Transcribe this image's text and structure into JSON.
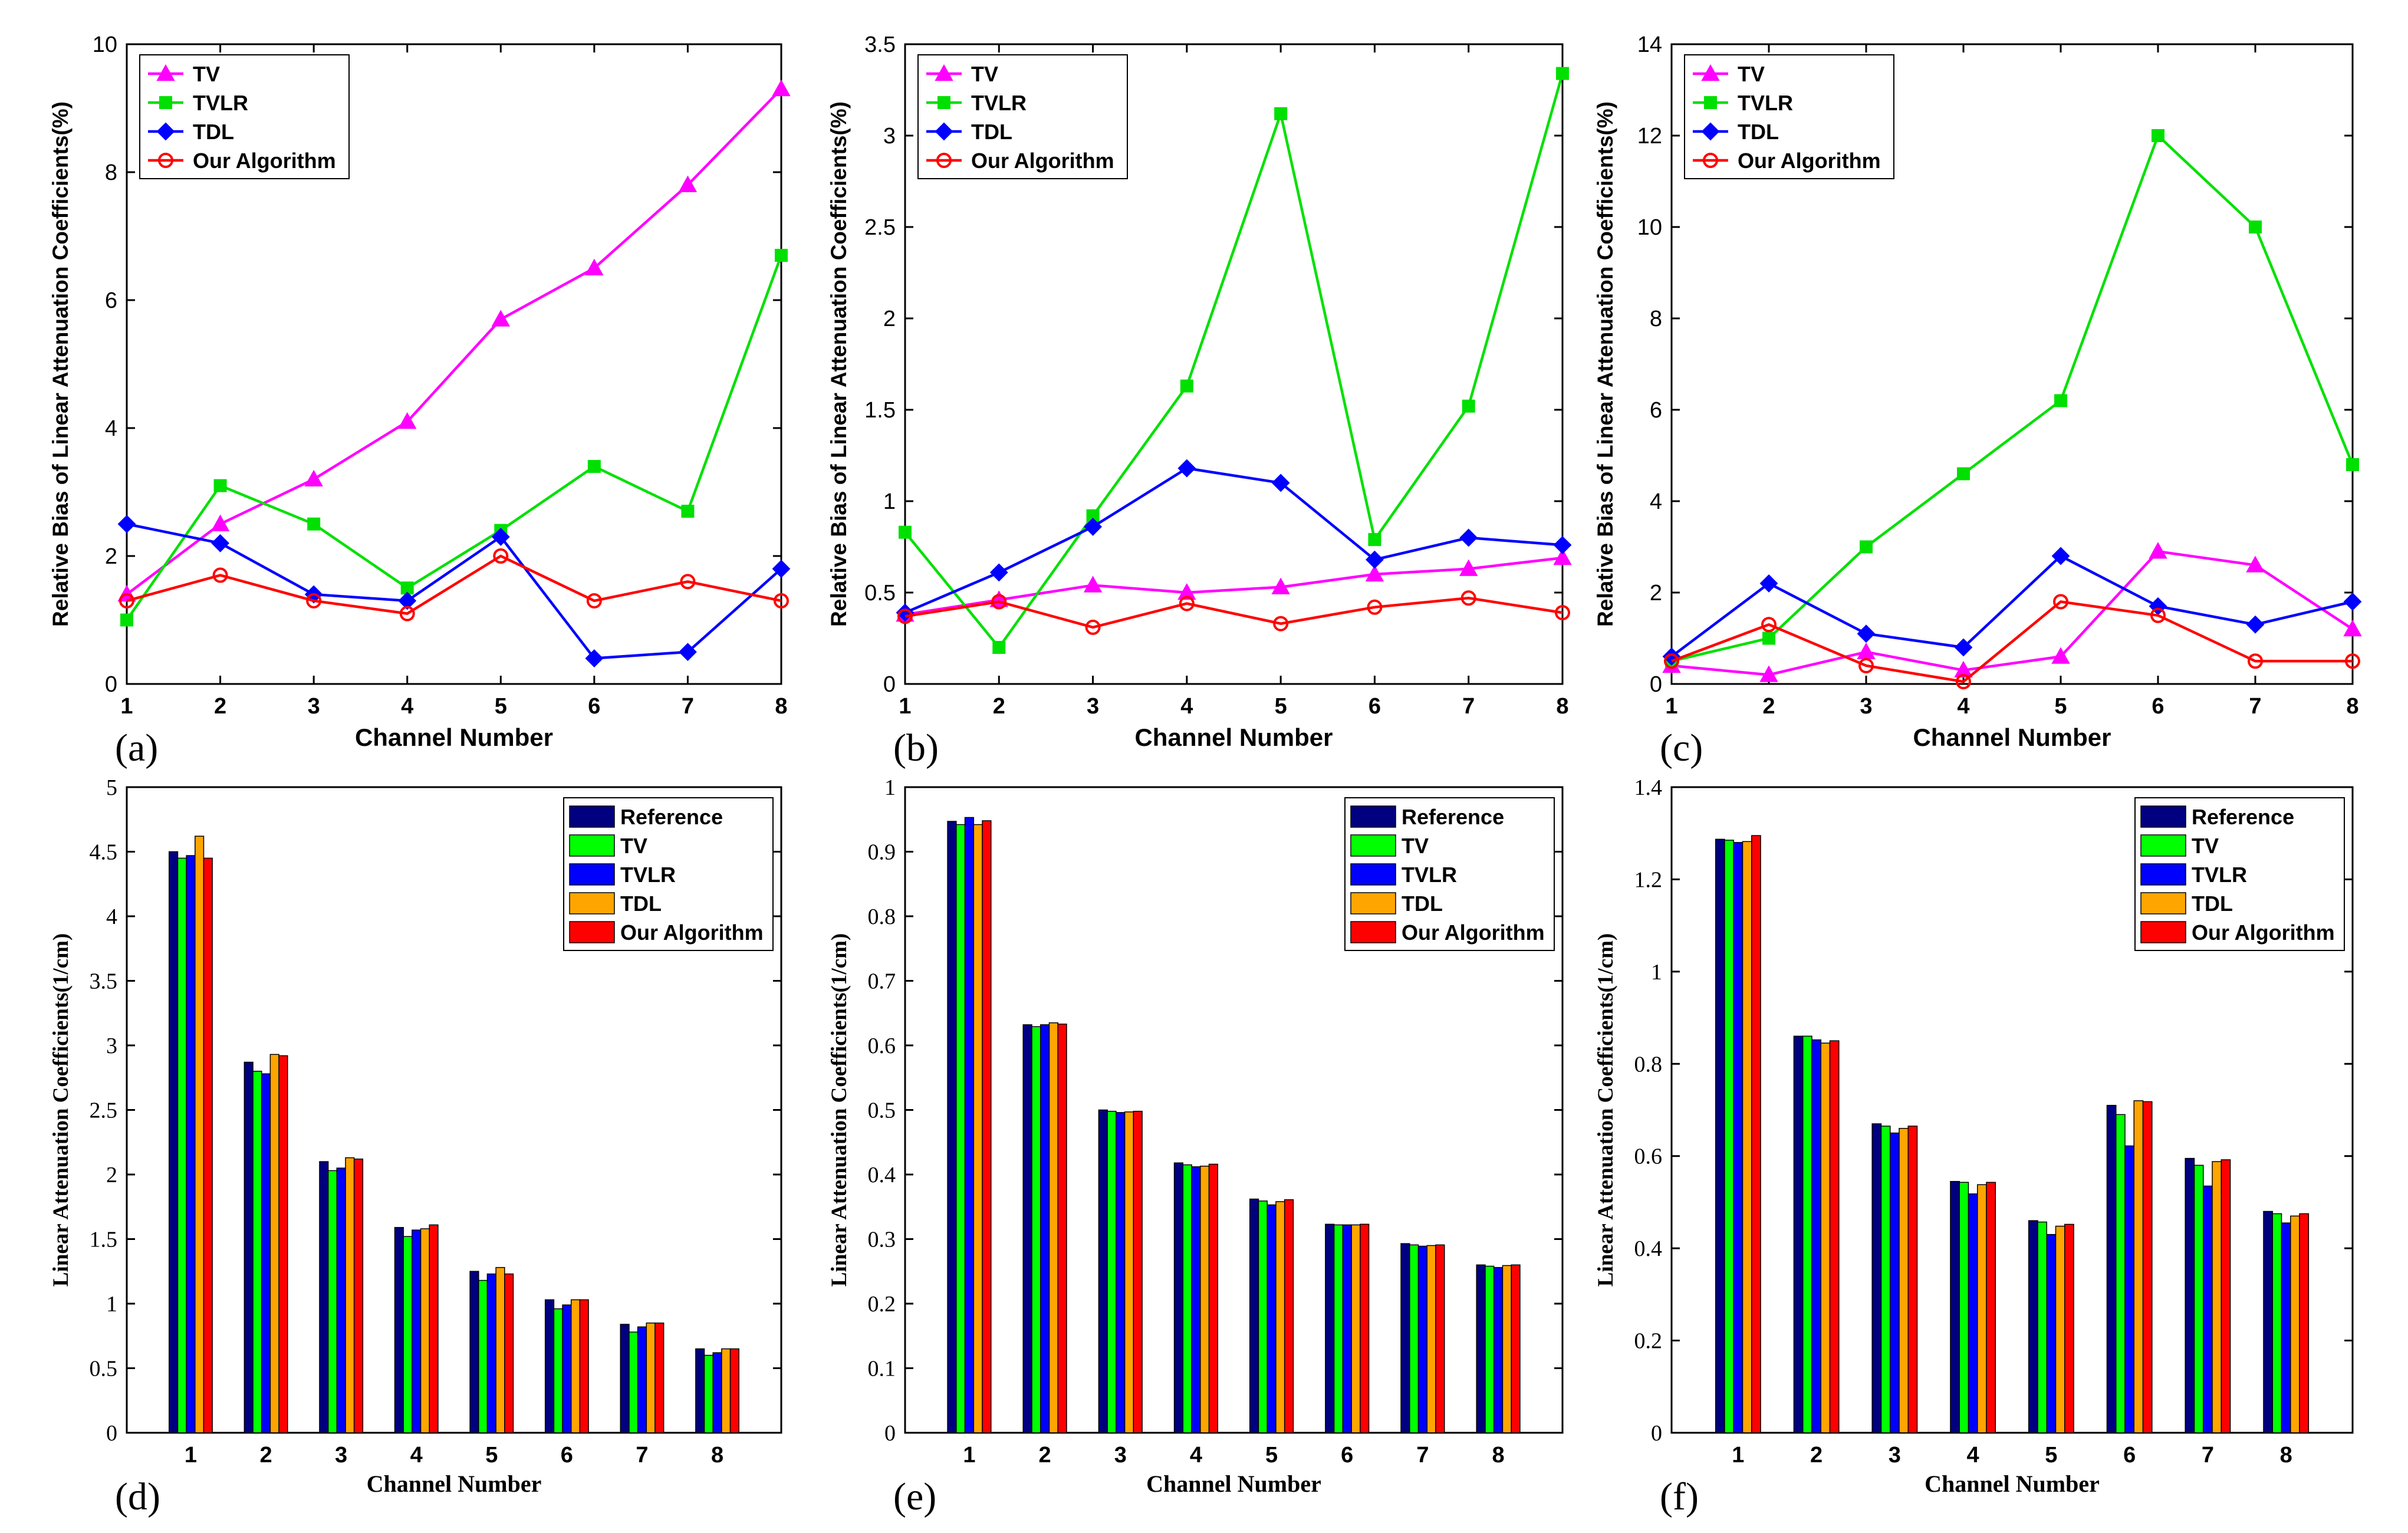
{
  "colors": {
    "TV": "#ff00ff",
    "TVLR": "#00e000",
    "TDL": "#0000ff",
    "Our Algorithm": "#ff0000",
    "Reference": "#000080",
    "bar_TV": "#00ff00",
    "bar_TVLR": "#0000ff",
    "bar_TDL": "#ffa500",
    "bar_Our": "#ff0000"
  },
  "chart_data": [
    {
      "id": "a",
      "panel_label": "(a)",
      "type": "line",
      "title": "",
      "xlabel": "Channel Number",
      "ylabel": "Relative Bias of Linear Attenuation Coefficients(%)",
      "x": [
        1,
        2,
        3,
        4,
        5,
        6,
        7,
        8
      ],
      "xlim": [
        1,
        8
      ],
      "ylim": [
        0,
        10
      ],
      "yticks": [
        0,
        2,
        4,
        6,
        8,
        10
      ],
      "ytick_labels": [
        "0",
        "2",
        "4",
        "6",
        "8",
        "10"
      ],
      "legend_position": "top-left",
      "series": [
        {
          "name": "TV",
          "marker": "triangle",
          "values": [
            1.4,
            2.5,
            3.2,
            4.1,
            5.7,
            6.5,
            7.8,
            9.3
          ]
        },
        {
          "name": "TVLR",
          "marker": "square",
          "values": [
            1.0,
            3.1,
            2.5,
            1.5,
            2.4,
            3.4,
            2.7,
            6.7
          ]
        },
        {
          "name": "TDL",
          "marker": "diamond",
          "values": [
            2.5,
            2.2,
            1.4,
            1.3,
            2.3,
            0.4,
            0.5,
            1.8
          ]
        },
        {
          "name": "Our Algorithm",
          "marker": "circle",
          "values": [
            1.3,
            1.7,
            1.3,
            1.1,
            2.0,
            1.3,
            1.6,
            1.3
          ]
        }
      ]
    },
    {
      "id": "b",
      "panel_label": "(b)",
      "type": "line",
      "title": "",
      "xlabel": "Channel Number",
      "ylabel": "Relative Bias of Linear Attenuation Coefficients(%)",
      "x": [
        1,
        2,
        3,
        4,
        5,
        6,
        7,
        8
      ],
      "xlim": [
        1,
        8
      ],
      "ylim": [
        0,
        3.5
      ],
      "yticks": [
        0,
        0.5,
        1,
        1.5,
        2,
        2.5,
        3,
        3.5
      ],
      "ytick_labels": [
        "0",
        "0.5",
        "1",
        "1.5",
        "2",
        "2.5",
        "3",
        "3.5"
      ],
      "legend_position": "top-left",
      "series": [
        {
          "name": "TV",
          "marker": "triangle",
          "values": [
            0.38,
            0.46,
            0.54,
            0.5,
            0.53,
            0.6,
            0.63,
            0.69
          ]
        },
        {
          "name": "TVLR",
          "marker": "square",
          "values": [
            0.83,
            0.2,
            0.92,
            1.63,
            3.12,
            0.79,
            1.52,
            3.34
          ]
        },
        {
          "name": "TDL",
          "marker": "diamond",
          "values": [
            0.39,
            0.61,
            0.86,
            1.18,
            1.1,
            0.68,
            0.8,
            0.76
          ]
        },
        {
          "name": "Our Algorithm",
          "marker": "circle",
          "values": [
            0.37,
            0.45,
            0.31,
            0.44,
            0.33,
            0.42,
            0.47,
            0.39
          ]
        }
      ]
    },
    {
      "id": "c",
      "panel_label": "(c)",
      "type": "line",
      "title": "",
      "xlabel": "Channel Number",
      "ylabel": "Relative Bias of Linear Attenuation Coefficients(%)",
      "x": [
        1,
        2,
        3,
        4,
        5,
        6,
        7,
        8
      ],
      "xlim": [
        1,
        8
      ],
      "ylim": [
        0,
        14
      ],
      "yticks": [
        0,
        2,
        4,
        6,
        8,
        10,
        12,
        14
      ],
      "ytick_labels": [
        "0",
        "2",
        "4",
        "6",
        "8",
        "10",
        "12",
        "14"
      ],
      "legend_position": "top-left",
      "series": [
        {
          "name": "TV",
          "marker": "triangle",
          "values": [
            0.4,
            0.2,
            0.7,
            0.3,
            0.6,
            2.9,
            2.6,
            1.2
          ]
        },
        {
          "name": "TVLR",
          "marker": "square",
          "values": [
            0.5,
            1.0,
            3.0,
            4.6,
            6.2,
            12.0,
            10.0,
            4.8
          ]
        },
        {
          "name": "TDL",
          "marker": "diamond",
          "values": [
            0.6,
            2.2,
            1.1,
            0.8,
            2.8,
            1.7,
            1.3,
            1.8
          ]
        },
        {
          "name": "Our Algorithm",
          "marker": "circle",
          "values": [
            0.5,
            1.3,
            0.4,
            0.05,
            1.8,
            1.5,
            0.5,
            0.5
          ]
        }
      ]
    },
    {
      "id": "d",
      "panel_label": "(d)",
      "type": "bar",
      "title": "",
      "xlabel": "Channel Number",
      "ylabel": "Linear Attenuation Coefficients(1/cm)",
      "categories": [
        "1",
        "2",
        "3",
        "4",
        "5",
        "6",
        "7",
        "8"
      ],
      "ylim": [
        0,
        5
      ],
      "yticks": [
        0,
        0.5,
        1,
        1.5,
        2,
        2.5,
        3,
        3.5,
        4,
        4.5,
        5
      ],
      "ytick_labels": [
        "0",
        "0.5",
        "1",
        "1.5",
        "2",
        "2.5",
        "3",
        "3.5",
        "4",
        "4.5",
        "5"
      ],
      "legend_position": "top-right",
      "series": [
        {
          "name": "Reference",
          "values": [
            4.5,
            2.87,
            2.1,
            1.59,
            1.25,
            1.03,
            0.84,
            0.65
          ]
        },
        {
          "name": "TV",
          "values": [
            4.45,
            2.8,
            2.03,
            1.52,
            1.18,
            0.96,
            0.78,
            0.6
          ]
        },
        {
          "name": "TVLR",
          "values": [
            4.47,
            2.78,
            2.05,
            1.57,
            1.23,
            0.99,
            0.82,
            0.62
          ]
        },
        {
          "name": "TDL",
          "values": [
            4.62,
            2.93,
            2.13,
            1.58,
            1.28,
            1.03,
            0.85,
            0.65
          ]
        },
        {
          "name": "Our Algorithm",
          "values": [
            4.45,
            2.92,
            2.12,
            1.61,
            1.23,
            1.03,
            0.85,
            0.65
          ]
        }
      ]
    },
    {
      "id": "e",
      "panel_label": "(e)",
      "type": "bar",
      "title": "",
      "xlabel": "Channel Number",
      "ylabel": "Linear Attenuation Coefficients(1/cm)",
      "categories": [
        "1",
        "2",
        "3",
        "4",
        "5",
        "6",
        "7",
        "8"
      ],
      "ylim": [
        0,
        1
      ],
      "yticks": [
        0,
        0.1,
        0.2,
        0.3,
        0.4,
        0.5,
        0.6,
        0.7,
        0.8,
        0.9,
        1
      ],
      "ytick_labels": [
        "0",
        "0.1",
        "0.2",
        "0.3",
        "0.4",
        "0.5",
        "0.6",
        "0.7",
        "0.8",
        "0.9",
        "1"
      ],
      "legend_position": "top-right",
      "series": [
        {
          "name": "Reference",
          "values": [
            0.947,
            0.632,
            0.5,
            0.418,
            0.362,
            0.323,
            0.293,
            0.26
          ]
        },
        {
          "name": "TV",
          "values": [
            0.942,
            0.629,
            0.498,
            0.415,
            0.359,
            0.322,
            0.291,
            0.258
          ]
        },
        {
          "name": "TVLR",
          "values": [
            0.953,
            0.632,
            0.496,
            0.412,
            0.353,
            0.322,
            0.289,
            0.256
          ]
        },
        {
          "name": "TDL",
          "values": [
            0.942,
            0.635,
            0.497,
            0.413,
            0.358,
            0.322,
            0.29,
            0.259
          ]
        },
        {
          "name": "Our Algorithm",
          "values": [
            0.948,
            0.633,
            0.498,
            0.416,
            0.361,
            0.323,
            0.291,
            0.26
          ]
        }
      ]
    },
    {
      "id": "f",
      "panel_label": "(f)",
      "type": "bar",
      "title": "",
      "xlabel": "Channel Number",
      "ylabel": "Linear Attenuation Coefficients(1/cm)",
      "categories": [
        "1",
        "2",
        "3",
        "4",
        "5",
        "6",
        "7",
        "8"
      ],
      "ylim": [
        0,
        1.4
      ],
      "yticks": [
        0,
        0.2,
        0.4,
        0.6,
        0.8,
        1,
        1.2,
        1.4
      ],
      "ytick_labels": [
        "0",
        "0.2",
        "0.4",
        "0.6",
        "0.8",
        "1",
        "1.2",
        "1.4"
      ],
      "legend_position": "top-right",
      "series": [
        {
          "name": "Reference",
          "values": [
            1.287,
            0.86,
            0.67,
            0.545,
            0.46,
            0.71,
            0.595,
            0.48
          ]
        },
        {
          "name": "TV",
          "values": [
            1.285,
            0.86,
            0.665,
            0.543,
            0.457,
            0.69,
            0.58,
            0.475
          ]
        },
        {
          "name": "TVLR",
          "values": [
            1.28,
            0.852,
            0.65,
            0.518,
            0.43,
            0.622,
            0.535,
            0.455
          ]
        },
        {
          "name": "TDL",
          "values": [
            1.282,
            0.845,
            0.66,
            0.538,
            0.448,
            0.72,
            0.588,
            0.47
          ]
        },
        {
          "name": "Our Algorithm",
          "values": [
            1.295,
            0.85,
            0.665,
            0.543,
            0.452,
            0.718,
            0.592,
            0.475
          ]
        }
      ]
    }
  ]
}
